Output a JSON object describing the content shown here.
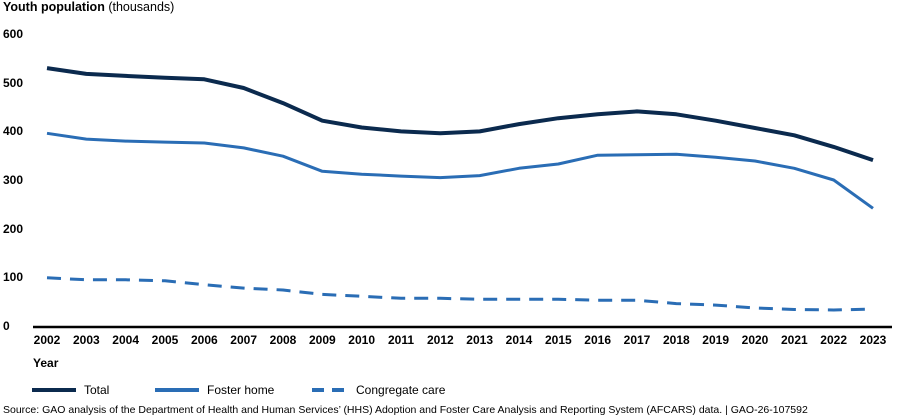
{
  "chart_data": {
    "type": "line",
    "title": "",
    "ylabel": {
      "bold": "Youth population",
      "normal": "(thousands)"
    },
    "xlabel": "Year",
    "ylim": [
      0,
      600
    ],
    "yticks": [
      0,
      100,
      200,
      300,
      400,
      500,
      600
    ],
    "grid": false,
    "legend_position": "bottom-left",
    "x": [
      "2002",
      "2003",
      "2004",
      "2005",
      "2006",
      "2007",
      "2008",
      "2009",
      "2010",
      "2011",
      "2012",
      "2013",
      "2014",
      "2015",
      "2016",
      "2017",
      "2018",
      "2019",
      "2020",
      "2021",
      "2022",
      "2023"
    ],
    "series": [
      {
        "name": "Total",
        "color": "#0b2a4e",
        "style": "solid",
        "values": [
          532,
          520,
          516,
          512,
          509,
          491,
          460,
          424,
          410,
          402,
          398,
          402,
          417,
          429,
          437,
          443,
          437,
          424,
          409,
          394,
          370,
          343
        ]
      },
      {
        "name": "Foster home",
        "color": "#2a6db5",
        "style": "solid",
        "values": [
          398,
          386,
          382,
          380,
          378,
          368,
          351,
          320,
          314,
          310,
          307,
          311,
          326,
          335,
          353,
          354,
          355,
          349,
          341,
          326,
          302,
          244
        ]
      },
      {
        "name": "Congregate care",
        "color": "#2a6db5",
        "style": "dashed",
        "values": [
          101,
          97,
          97,
          95,
          87,
          80,
          76,
          67,
          63,
          59,
          59,
          57,
          57,
          57,
          55,
          55,
          48,
          45,
          39,
          36,
          35,
          37
        ]
      }
    ]
  },
  "source_note": "Source: GAO analysis of the Department of Health and Human Services’ (HHS) Adoption and Foster Care Analysis and Reporting System (AFCARS) data.  |  GAO-26-107592"
}
